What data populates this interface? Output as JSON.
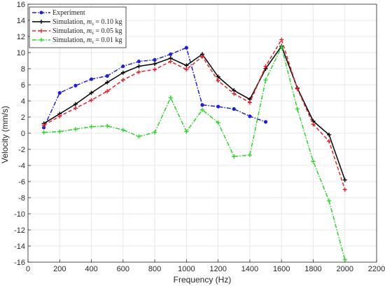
{
  "chart_data": {
    "type": "line",
    "xlabel": "Frequency (Hz)",
    "ylabel": "Velocity (mm/s)",
    "xlim": [
      0,
      2200
    ],
    "ylim": [
      -16,
      16
    ],
    "xticks": [
      0,
      200,
      400,
      600,
      800,
      1000,
      1200,
      1400,
      1600,
      1800,
      2000,
      2200
    ],
    "yticks": [
      -16,
      -14,
      -12,
      -10,
      -8,
      -6,
      -4,
      -2,
      0,
      2,
      4,
      6,
      8,
      10,
      12,
      14,
      16
    ],
    "xtick_labels": [
      "0",
      "200",
      "400",
      "600",
      "800",
      "1000",
      "1200",
      "1400",
      "1600",
      "1800",
      "2000",
      "2200"
    ],
    "ytick_labels": [
      "-16",
      "-14",
      "-12",
      "-10",
      "-8",
      "-6",
      "-4",
      "-2",
      "0",
      "2",
      "4",
      "6",
      "8",
      "10",
      "12",
      "14",
      "16"
    ],
    "grid": true,
    "legend_position": "top-left",
    "series": [
      {
        "name": "Experiment",
        "color": "#1f1fd6",
        "dash": "dashdot",
        "marker": "circle",
        "x": [
          100,
          200,
          300,
          400,
          500,
          600,
          700,
          800,
          900,
          1000,
          1100,
          1200,
          1300,
          1400,
          1500
        ],
        "y": [
          0.7,
          5.0,
          5.9,
          6.7,
          7.1,
          8.3,
          8.9,
          9.1,
          9.8,
          10.6,
          3.5,
          3.3,
          3.0,
          2.1,
          1.4
        ]
      },
      {
        "name": "Simulation, m_s = 0.10 kg",
        "color": "#000000",
        "dash": "solid",
        "marker": "plus",
        "x": [
          100,
          200,
          300,
          400,
          500,
          600,
          700,
          800,
          900,
          1000,
          1100,
          1200,
          1300,
          1400,
          1500,
          1600,
          1700,
          1800,
          1900,
          2000
        ],
        "y": [
          1.2,
          2.4,
          3.6,
          5.0,
          6.3,
          7.5,
          8.3,
          8.6,
          9.3,
          8.4,
          9.8,
          7.0,
          5.3,
          4.2,
          8.0,
          10.8,
          5.6,
          1.5,
          -0.2,
          -5.8
        ]
      },
      {
        "name": "Simulation, m_s = 0.05 kg",
        "color": "#e8202a",
        "dash": "dashed",
        "marker": "plus",
        "x": [
          100,
          200,
          300,
          400,
          500,
          600,
          700,
          800,
          900,
          1000,
          1100,
          1200,
          1300,
          1400,
          1500,
          1600,
          1700,
          1800,
          1900,
          2000
        ],
        "y": [
          1.0,
          2.1,
          3.1,
          4.1,
          5.2,
          6.6,
          7.6,
          7.9,
          8.9,
          7.9,
          9.5,
          6.5,
          4.9,
          3.8,
          8.3,
          11.6,
          5.5,
          1.1,
          -1.0,
          -7.0
        ]
      },
      {
        "name": "Simulation, m_s = 0.01 kg",
        "color": "#2bd62b",
        "dash": "dashdot",
        "marker": "plus",
        "x": [
          100,
          200,
          300,
          400,
          500,
          600,
          700,
          800,
          900,
          1000,
          1100,
          1200,
          1300,
          1400,
          1500,
          1600,
          1700,
          1800,
          1900,
          2000
        ],
        "y": [
          0.1,
          0.2,
          0.5,
          0.8,
          0.9,
          0.4,
          -0.4,
          0.1,
          4.4,
          0.2,
          2.9,
          1.3,
          -2.9,
          -2.7,
          6.6,
          10.7,
          3.0,
          -3.5,
          -8.4,
          -15.7
        ]
      }
    ]
  },
  "legend": {
    "experiment": "Experiment",
    "sim1_prefix": "Simulation, ",
    "sim1_var": "m",
    "sim1_sub": "s",
    "sim1_suffix": " = 0.10 kg",
    "sim2_prefix": "Simulation, ",
    "sim2_var": "m",
    "sim2_sub": "s",
    "sim2_suffix": " = 0.05 kg",
    "sim3_prefix": "Simulation, ",
    "sim3_var": "m",
    "sim3_sub": "s",
    "sim3_suffix": " = 0.01 kg"
  }
}
